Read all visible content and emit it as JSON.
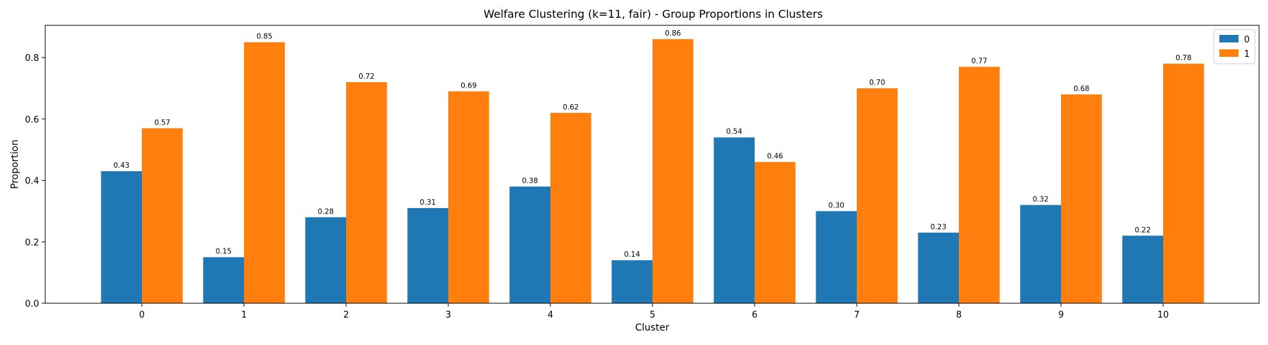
{
  "chart_data": {
    "type": "bar",
    "title": "Welfare Clustering (k=11, fair) - Group Proportions in Clusters",
    "xlabel": "Cluster",
    "ylabel": "Proportion",
    "categories": [
      "0",
      "1",
      "2",
      "3",
      "4",
      "5",
      "6",
      "7",
      "8",
      "9",
      "10"
    ],
    "ylim": [
      0,
      0.905
    ],
    "yticks": [
      0.0,
      0.2,
      0.4,
      0.6,
      0.8
    ],
    "ytick_labels": [
      "0.0",
      "0.2",
      "0.4",
      "0.6",
      "0.8"
    ],
    "grid": false,
    "legend_position": "top-right",
    "series": [
      {
        "name": "0",
        "color": "#1f77b4",
        "values": [
          0.43,
          0.15,
          0.28,
          0.31,
          0.38,
          0.14,
          0.54,
          0.3,
          0.23,
          0.32,
          0.22
        ],
        "labels": [
          "0.43",
          "0.15",
          "0.28",
          "0.31",
          "0.38",
          "0.14",
          "0.54",
          "0.30",
          "0.23",
          "0.32",
          "0.22"
        ]
      },
      {
        "name": "1",
        "color": "#ff7f0e",
        "values": [
          0.57,
          0.85,
          0.72,
          0.69,
          0.62,
          0.86,
          0.46,
          0.7,
          0.77,
          0.68,
          0.78
        ],
        "labels": [
          "0.57",
          "0.85",
          "0.72",
          "0.69",
          "0.62",
          "0.86",
          "0.46",
          "0.70",
          "0.77",
          "0.68",
          "0.78"
        ]
      }
    ]
  }
}
